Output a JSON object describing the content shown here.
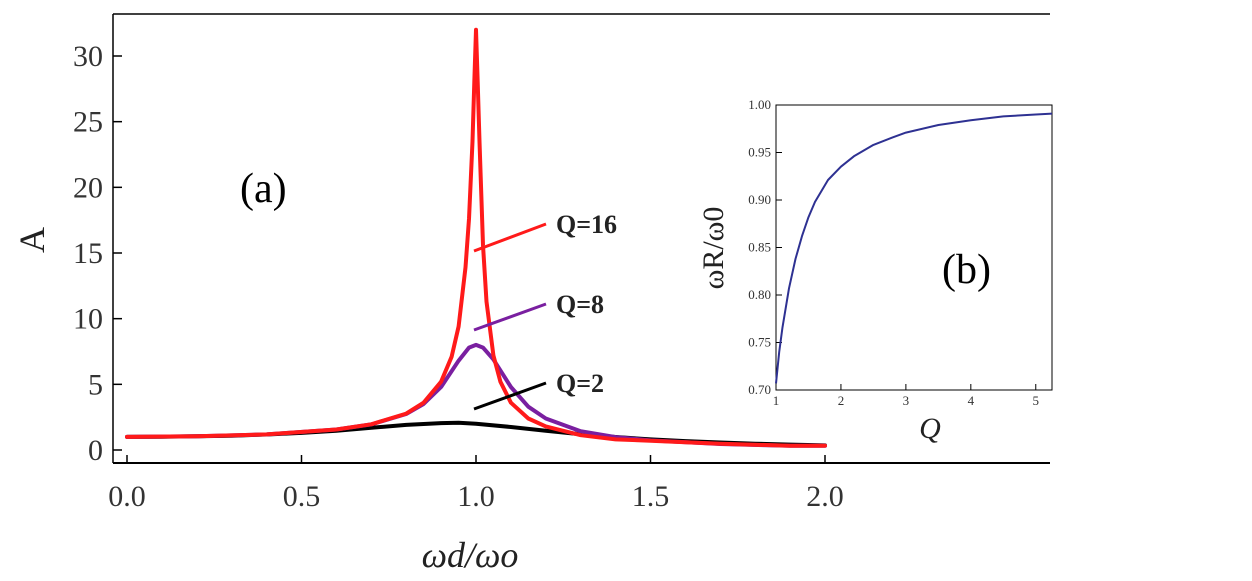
{
  "chart_data": [
    {
      "panel": "(a)",
      "type": "line",
      "xlabel": "ωd/ωo",
      "ylabel": "A",
      "xlim": [
        0.0,
        2.0
      ],
      "ylim": [
        0,
        32
      ],
      "x_ticks": [
        "0.0",
        "0.5",
        "1.0",
        "1.5",
        "2.0"
      ],
      "y_ticks": [
        "0",
        "5",
        "10",
        "15",
        "20",
        "25",
        "30"
      ],
      "grid": false,
      "series": [
        {
          "name": "Q=2",
          "color": "#000000",
          "x": [
            0.0,
            0.1,
            0.2,
            0.3,
            0.4,
            0.5,
            0.6,
            0.7,
            0.8,
            0.9,
            0.95,
            1.0,
            1.1,
            1.2,
            1.3,
            1.4,
            1.5,
            1.6,
            1.7,
            1.8,
            1.9,
            2.0
          ],
          "values": [
            1.0,
            1.01,
            1.04,
            1.09,
            1.18,
            1.3,
            1.47,
            1.69,
            1.91,
            2.05,
            2.07,
            2.0,
            1.75,
            1.46,
            1.2,
            0.99,
            0.81,
            0.68,
            0.57,
            0.48,
            0.41,
            0.35
          ]
        },
        {
          "name": "Q=8",
          "color": "#7a1fa0",
          "x": [
            0.0,
            0.2,
            0.4,
            0.6,
            0.7,
            0.8,
            0.85,
            0.9,
            0.95,
            0.98,
            1.0,
            1.02,
            1.05,
            1.1,
            1.15,
            1.2,
            1.3,
            1.4,
            1.5,
            1.7,
            1.9,
            2.0
          ],
          "values": [
            1.0,
            1.04,
            1.19,
            1.56,
            1.95,
            2.74,
            3.5,
            4.8,
            6.8,
            7.8,
            8.0,
            7.8,
            6.9,
            4.8,
            3.3,
            2.4,
            1.43,
            0.98,
            0.73,
            0.46,
            0.32,
            0.33
          ]
        },
        {
          "name": "Q=16",
          "color": "#ff1a1a",
          "x": [
            0.0,
            0.2,
            0.4,
            0.6,
            0.7,
            0.8,
            0.85,
            0.9,
            0.93,
            0.95,
            0.97,
            0.98,
            0.99,
            0.995,
            1.0,
            1.005,
            1.01,
            1.02,
            1.03,
            1.05,
            1.07,
            1.1,
            1.15,
            1.2,
            1.3,
            1.4,
            1.5,
            1.7,
            1.9,
            2.0
          ],
          "values": [
            1.0,
            1.04,
            1.19,
            1.56,
            1.96,
            2.77,
            3.6,
            5.2,
            7.1,
            9.4,
            13.9,
            17.6,
            23.5,
            28.0,
            32.0,
            28.0,
            23.5,
            15.6,
            11.3,
            7.2,
            5.2,
            3.6,
            2.4,
            1.8,
            1.13,
            0.81,
            0.71,
            0.47,
            0.33,
            0.33
          ]
        }
      ],
      "annotations": [
        "Q=16",
        "Q=8",
        "Q=2"
      ]
    },
    {
      "panel": "(b)",
      "type": "line",
      "xlabel": "Q",
      "ylabel": "ωR/ω0",
      "xlim": [
        1,
        5.25
      ],
      "ylim": [
        0.7,
        1.0
      ],
      "x_ticks": [
        "1",
        "2",
        "3",
        "4",
        "5"
      ],
      "y_ticks": [
        "0.70",
        "0.75",
        "0.80",
        "0.85",
        "0.90",
        "0.95",
        "1.00"
      ],
      "grid": false,
      "series": [
        {
          "color": "#2e3192",
          "x": [
            1.0,
            1.05,
            1.1,
            1.2,
            1.3,
            1.4,
            1.5,
            1.6,
            1.8,
            2.0,
            2.2,
            2.5,
            2.8,
            3.0,
            3.5,
            4.0,
            4.5,
            5.0,
            5.25
          ],
          "values": [
            0.707,
            0.74,
            0.766,
            0.807,
            0.838,
            0.862,
            0.882,
            0.898,
            0.921,
            0.935,
            0.946,
            0.958,
            0.966,
            0.971,
            0.979,
            0.984,
            0.988,
            0.99,
            0.991
          ]
        }
      ]
    }
  ],
  "labels": {
    "panel_a_tag": "(a)",
    "panel_b_tag": "(b)",
    "q16": "Q=16",
    "q8": "Q=8",
    "q2": "Q=2"
  },
  "colors": {
    "q2": "#000000",
    "q8": "#7a1fa0",
    "q16": "#ff1a1a",
    "inset_curve": "#2e3192"
  }
}
